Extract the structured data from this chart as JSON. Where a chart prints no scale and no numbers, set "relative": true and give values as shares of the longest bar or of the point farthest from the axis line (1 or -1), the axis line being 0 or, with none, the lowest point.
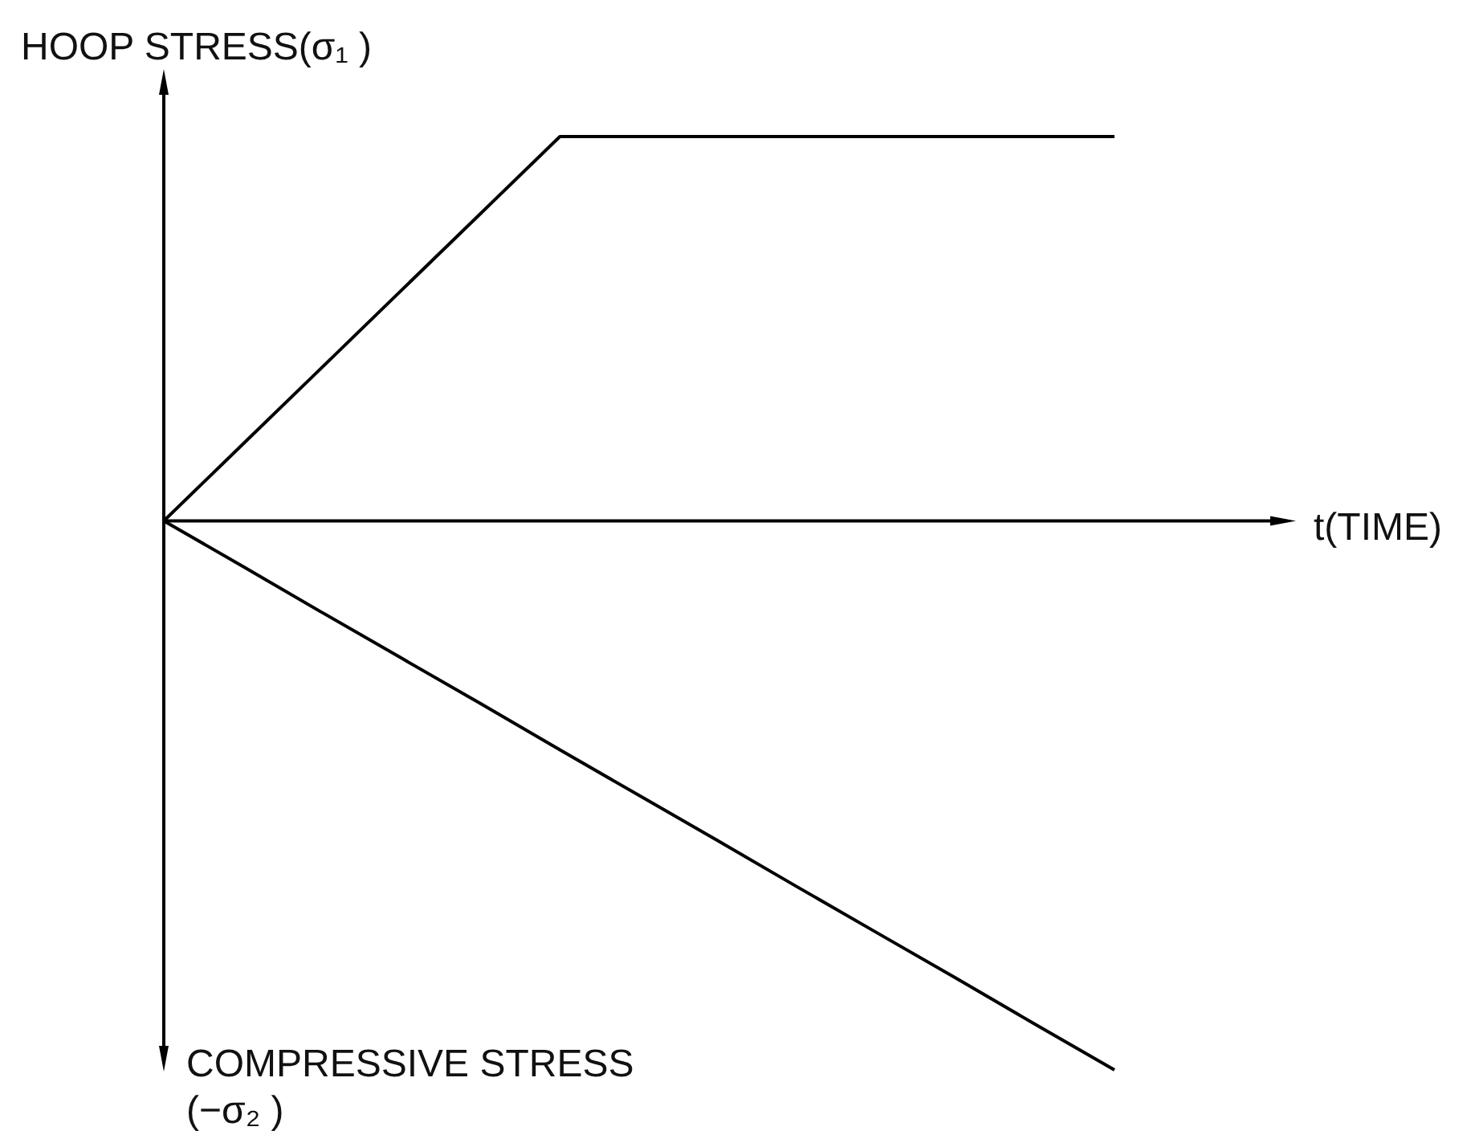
{
  "chart_data": {
    "type": "line",
    "relative": true,
    "ylabel": "HOOP STRESS(σ₁ )",
    "xlabel": "t(TIME)",
    "annotations": [
      "COMPRESSIVE STRESS\n(−σ₂ )"
    ],
    "categories": [
      null,
      null,
      null,
      null,
      null,
      null,
      null,
      null,
      null,
      null,
      null,
      null,
      null
    ],
    "series": [
      {
        "color": "#000000",
        "values": [
          0,
          0.14,
          0.28,
          0.42,
          0.56,
          0.7,
          0.7,
          0.7,
          0.7,
          0.7,
          0.7,
          0.7,
          0.7
        ]
      },
      {
        "color": "#000000",
        "values": [
          0,
          -0.083,
          -0.167,
          -0.25,
          -0.333,
          -0.417,
          -0.5,
          -0.583,
          -0.667,
          -0.75,
          -0.833,
          -0.917,
          -1
        ]
      }
    ]
  }
}
